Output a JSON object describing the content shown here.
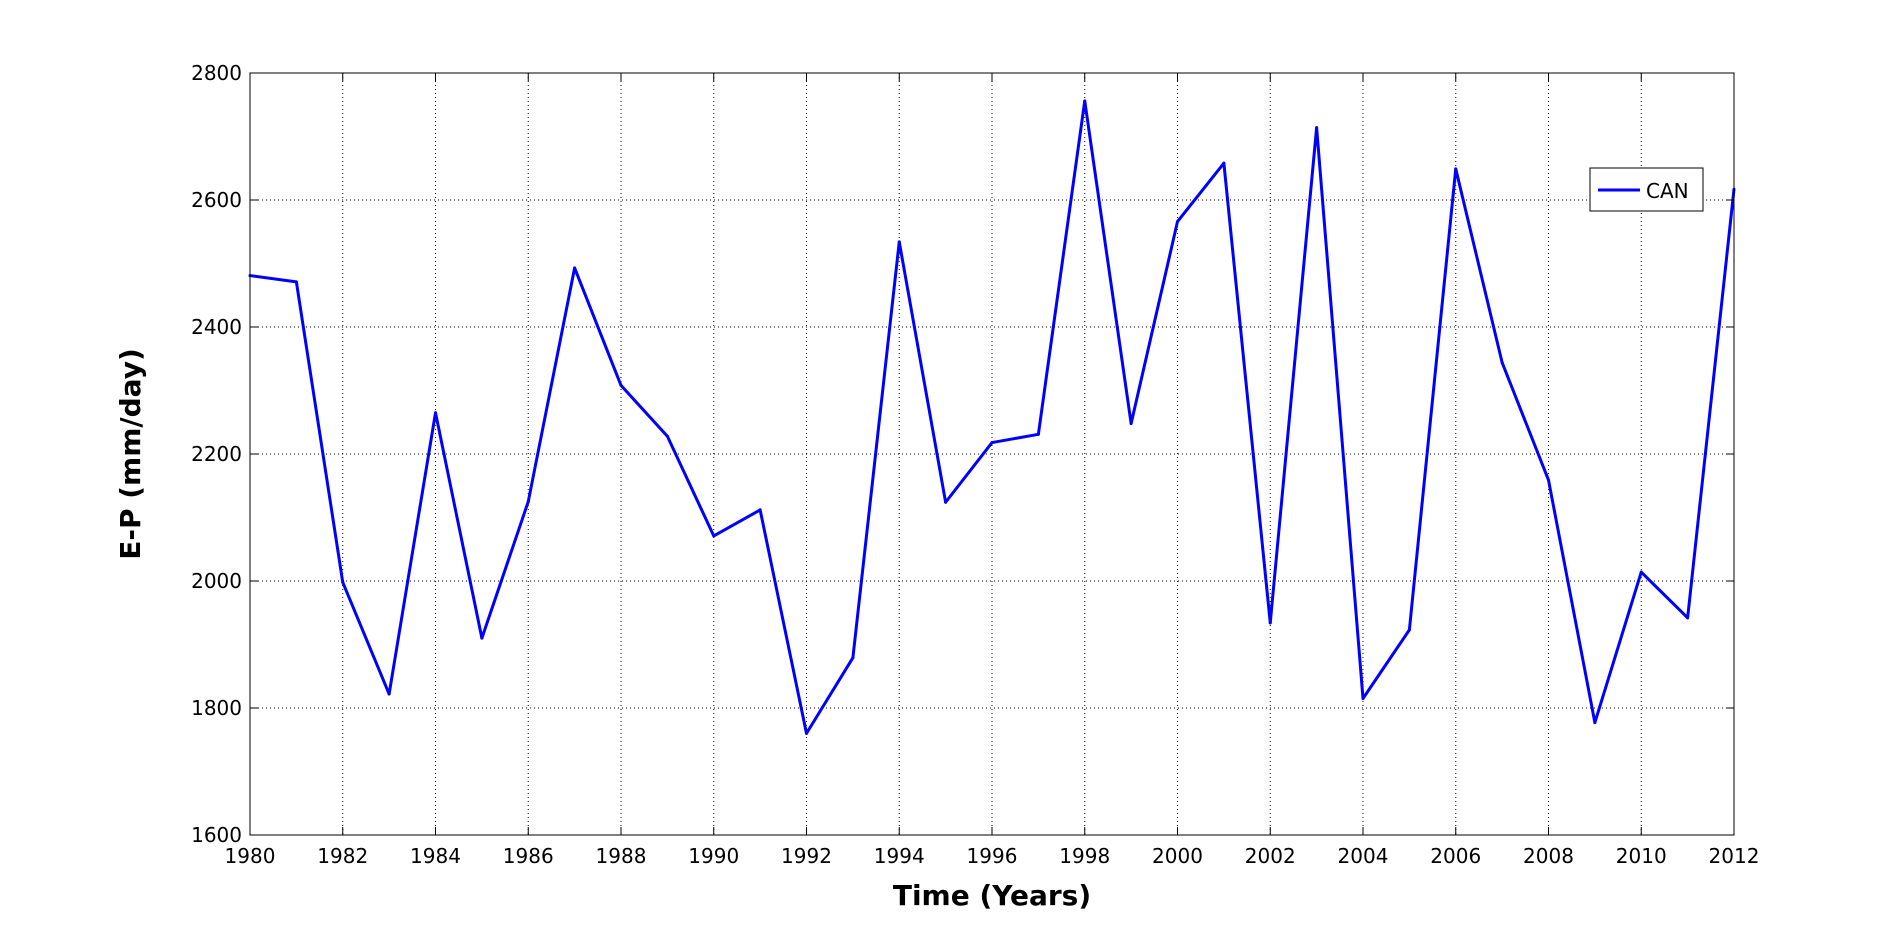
{
  "chart_data": {
    "type": "line",
    "title": "",
    "xlabel": "Time (Years)",
    "ylabel": "E-P (mm/day)",
    "xlim": [
      1980,
      2012
    ],
    "ylim": [
      1600,
      2800
    ],
    "xticks": [
      "1980",
      "1982",
      "1984",
      "1986",
      "1988",
      "1990",
      "1992",
      "1994",
      "1996",
      "1998",
      "2000",
      "2002",
      "2004",
      "2006",
      "2008",
      "2010",
      "2012"
    ],
    "yticks": [
      "1600",
      "1800",
      "2000",
      "2200",
      "2400",
      "2600",
      "2800"
    ],
    "grid": true,
    "legend_position": "top-right",
    "x": [
      1980,
      1981,
      1982,
      1983,
      1984,
      1985,
      1986,
      1987,
      1988,
      1989,
      1990,
      1991,
      1992,
      1993,
      1994,
      1995,
      1996,
      1997,
      1998,
      1999,
      2000,
      2001,
      2002,
      2003,
      2004,
      2005,
      2006,
      2007,
      2008,
      2009,
      2010,
      2011,
      2012
    ],
    "series": [
      {
        "name": "CAN",
        "color": "#0000ff",
        "values": [
          2481,
          2471,
          1998,
          1822,
          2265,
          1910,
          2125,
          2493,
          2308,
          2228,
          2071,
          2112,
          1760,
          1879,
          2534,
          2124,
          2218,
          2231,
          2756,
          2248,
          2566,
          2658,
          1934,
          2714,
          1815,
          1923,
          2649,
          2344,
          2159,
          1777,
          2014,
          1942,
          2617
        ]
      }
    ]
  }
}
